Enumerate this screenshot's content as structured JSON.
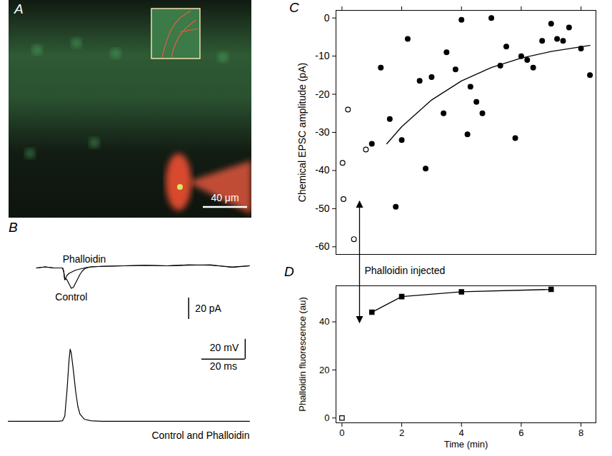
{
  "chart_data": [
    {
      "type": "image",
      "title": "A",
      "scale_bar_label": "40 μm"
    },
    {
      "type": "line",
      "title": "B",
      "tick_labels": false,
      "xlim": [
        -14,
        99
      ],
      "ylim": [
        -50,
        14
      ],
      "y2lim": [
        -8,
        84
      ],
      "x": [
        0,
        4,
        8,
        12,
        12.5,
        13,
        13.5,
        14,
        15,
        16,
        17,
        18,
        19,
        20,
        21,
        22,
        23,
        25,
        30,
        40,
        50,
        60,
        70,
        80,
        90,
        98
      ],
      "series": [
        {
          "name": "Phalloidin",
          "color": "#000000",
          "line_style": "solid",
          "values": [
            0,
            1,
            0,
            0,
            -3,
            -11,
            -9,
            -7,
            -5,
            -4,
            -3,
            -2,
            -1.5,
            -1,
            -0.5,
            0,
            0.5,
            1,
            1.5,
            2,
            2.5,
            2,
            3,
            2.5,
            1,
            2
          ]
        },
        {
          "name": "Control",
          "color": "#000000",
          "line_style": "solid",
          "values": [
            0,
            1,
            0,
            0,
            -3,
            -11,
            -10,
            -11,
            -15,
            -19,
            -18,
            -14,
            -10,
            -6,
            -3,
            -1,
            0,
            1,
            1.5,
            2,
            2.5,
            2,
            2.5,
            3,
            0.5,
            2
          ]
        },
        {
          "name": "Control and Phalloidin",
          "color": "#000000",
          "line_style": "solid",
          "axis": "y2",
          "x": [
            -13,
            0,
            10,
            12,
            13,
            14,
            15,
            15.5,
            16,
            17,
            18,
            19,
            20,
            22,
            25,
            30,
            40,
            98
          ],
          "values": [
            0,
            0,
            0,
            0.5,
            5,
            30,
            62,
            72,
            68,
            50,
            30,
            15,
            7,
            2,
            0.5,
            0,
            0,
            0
          ]
        }
      ],
      "scale_bars": [
        {
          "label": "20 pA",
          "value": 20,
          "axis": "y"
        },
        {
          "label": "20 mV",
          "value": 20,
          "axis": "y2"
        },
        {
          "label": "20 ms",
          "value": 20,
          "axis": "x"
        }
      ]
    },
    {
      "type": "scatter",
      "title": "C",
      "y_label": "Chemical EPSC amplitude (pA)",
      "xlim": [
        -0.2,
        8.5
      ],
      "ylim": [
        -62,
        2
      ],
      "xticks": [
        0,
        2,
        4,
        6,
        8
      ],
      "yticks": [
        0,
        -10,
        -20,
        -30,
        -40,
        -50,
        -60
      ],
      "tick_labels": "y",
      "series": [
        {
          "type": "scatter",
          "marker": "open_circle",
          "color": "#000000",
          "x": [
            0.02,
            0.05,
            0.2,
            0.4,
            0.8
          ],
          "values": [
            -38,
            -47.5,
            -24,
            -58,
            -34.5
          ]
        },
        {
          "type": "scatter",
          "marker": "circle",
          "color": "#000000",
          "x": [
            1.0,
            1.3,
            1.6,
            1.8,
            2.0,
            2.2,
            2.6,
            2.8,
            3.0,
            3.4,
            3.5,
            3.8,
            4.0,
            4.2,
            4.3,
            4.5,
            4.7,
            5.0,
            5.3,
            5.5,
            5.8,
            6.0,
            6.2,
            6.4,
            6.7,
            7.0,
            7.2,
            7.4,
            7.6,
            8.0,
            8.3
          ],
          "values": [
            -33,
            -13,
            -26.5,
            -49.5,
            -32,
            -5.5,
            -16.5,
            -39.5,
            -15.5,
            -25,
            -9,
            -13.5,
            -0.5,
            -30.5,
            -18,
            -22,
            -25,
            0,
            -12.5,
            -7.5,
            -31.5,
            -10,
            -11,
            -13,
            -6,
            -1.5,
            -5.5,
            -6,
            -2.5,
            -8,
            -15
          ]
        },
        {
          "type": "line",
          "line_style": "solid",
          "color": "#000000",
          "x": [
            1.5,
            2,
            3,
            4,
            5,
            6,
            7,
            8.3
          ],
          "values": [
            -33,
            -28.5,
            -21.5,
            -16.5,
            -13,
            -10.5,
            -8.8,
            -7.2
          ]
        }
      ],
      "annotation": {
        "text": "Phalloidin injected",
        "x": 0.6
      }
    },
    {
      "type": "line",
      "title": "D",
      "x_label": "Time (min)",
      "y_label": "Phalloidin fluorescence (au)",
      "xlim": [
        -0.2,
        8.5
      ],
      "ylim": [
        -2,
        55
      ],
      "xticks": [
        0,
        2,
        4,
        6,
        8
      ],
      "yticks": [
        0,
        20,
        40
      ],
      "series": [
        {
          "type": "scatter",
          "marker": "open_square",
          "color": "#000000",
          "x": [
            0
          ],
          "values": [
            0
          ]
        },
        {
          "type": "line",
          "marker": "square",
          "line_style": "solid",
          "color": "#000000",
          "x": [
            1,
            2,
            4,
            7
          ],
          "values": [
            44,
            50.5,
            52.5,
            53.5
          ]
        }
      ]
    }
  ]
}
